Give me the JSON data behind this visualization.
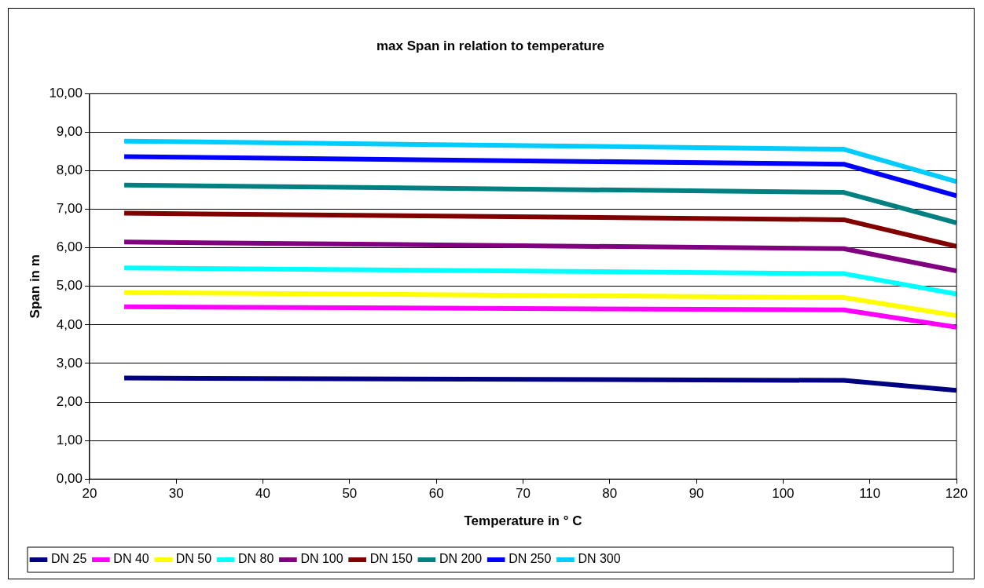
{
  "chart_data": {
    "type": "line",
    "title": "max Span in relation to temperature",
    "xlabel": "Temperature in ° C",
    "ylabel": "Span in m",
    "x": [
      24,
      107,
      120
    ],
    "series": [
      {
        "name": "DN 25",
        "color": "#000080",
        "values": [
          2.62,
          2.56,
          2.3
        ]
      },
      {
        "name": "DN 40",
        "color": "#ff00ff",
        "values": [
          4.47,
          4.39,
          3.94
        ]
      },
      {
        "name": "DN 50",
        "color": "#ffff00",
        "values": [
          4.84,
          4.71,
          4.24
        ]
      },
      {
        "name": "DN 80",
        "color": "#00ffff",
        "values": [
          5.48,
          5.33,
          4.8
        ]
      },
      {
        "name": "DN 100",
        "color": "#800080",
        "values": [
          6.15,
          5.98,
          5.4
        ]
      },
      {
        "name": "DN 150",
        "color": "#800000",
        "values": [
          6.9,
          6.73,
          6.04
        ]
      },
      {
        "name": "DN 200",
        "color": "#008080",
        "values": [
          7.63,
          7.44,
          6.65
        ]
      },
      {
        "name": "DN 250",
        "color": "#0000ff",
        "values": [
          8.37,
          8.17,
          7.35
        ]
      },
      {
        "name": "DN 300",
        "color": "#00ccff",
        "values": [
          8.77,
          8.56,
          7.72
        ]
      }
    ],
    "xlim": [
      20,
      120
    ],
    "xticks": [
      20,
      30,
      40,
      50,
      60,
      70,
      80,
      90,
      100,
      110,
      120
    ],
    "ylim": [
      0,
      10
    ],
    "yticks": [
      {
        "value": 0,
        "label": "0,00"
      },
      {
        "value": 1,
        "label": "1,00"
      },
      {
        "value": 2,
        "label": "2,00"
      },
      {
        "value": 3,
        "label": "3,00"
      },
      {
        "value": 4,
        "label": "4,00"
      },
      {
        "value": 5,
        "label": "5,00"
      },
      {
        "value": 6,
        "label": "6,00"
      },
      {
        "value": 7,
        "label": "7,00"
      },
      {
        "value": 8,
        "label": "8,00"
      },
      {
        "value": 9,
        "label": "9,00"
      },
      {
        "value": 10,
        "label": "10,00"
      }
    ],
    "grid": "y",
    "legend": "bottom",
    "marker": "none",
    "line_style": "solid"
  }
}
